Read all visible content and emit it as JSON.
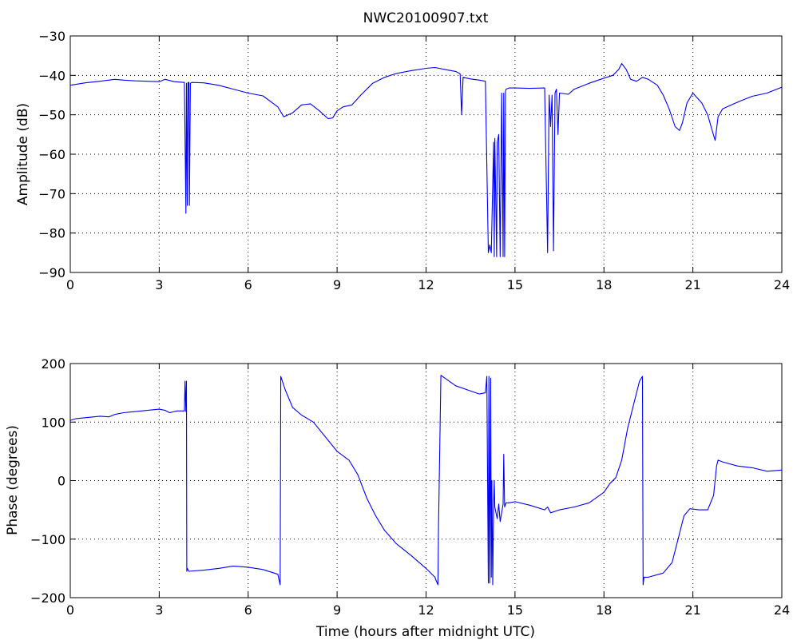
{
  "figure": {
    "title": "NWC20100907.txt"
  },
  "chart_data": [
    {
      "type": "line",
      "title": "NWC20100907.txt",
      "xlabel": "",
      "ylabel": "Amplitude (dB)",
      "xlim": [
        0,
        24
      ],
      "ylim": [
        -90,
        -30
      ],
      "xticks": [
        0,
        3,
        6,
        9,
        12,
        15,
        18,
        21,
        24
      ],
      "yticks": [
        -90,
        -80,
        -70,
        -60,
        -50,
        -40,
        -30
      ],
      "xtick_labels": [
        "0",
        "3",
        "6",
        "9",
        "12",
        "15",
        "18",
        "21",
        "24"
      ],
      "ytick_labels": [
        "−90",
        "−80",
        "−70",
        "−60",
        "−50",
        "−40",
        "−30"
      ],
      "grid": true,
      "color": "#0000ff",
      "series": [
        {
          "x": [
            0,
            0.5,
            1.0,
            1.5,
            1.8,
            2.2,
            2.6,
            3.0,
            3.2,
            3.5,
            3.85,
            3.9,
            3.92,
            3.95,
            3.97,
            4.0,
            4.02,
            4.05,
            4.1,
            4.5,
            5.0,
            5.5,
            6.0,
            6.5,
            7.0,
            7.2,
            7.5,
            7.8,
            8.1,
            8.4,
            8.7,
            8.85,
            9.0,
            9.2,
            9.5,
            9.8,
            10.2,
            10.6,
            11.0,
            11.5,
            12.0,
            12.3,
            12.7,
            13.0,
            13.15,
            13.2,
            13.25,
            13.5,
            13.8,
            14.0,
            14.1,
            14.15,
            14.2,
            14.28,
            14.3,
            14.32,
            14.38,
            14.4,
            14.45,
            14.5,
            14.55,
            14.6,
            14.62,
            14.65,
            14.68,
            14.7,
            14.8,
            15.0,
            15.5,
            16.0,
            16.1,
            16.15,
            16.2,
            16.25,
            16.3,
            16.35,
            16.4,
            16.45,
            16.5,
            16.8,
            17.0,
            17.5,
            18.0,
            18.3,
            18.5,
            18.6,
            18.75,
            18.9,
            19.1,
            19.3,
            19.5,
            19.8,
            20.0,
            20.2,
            20.4,
            20.55,
            20.65,
            20.8,
            21.0,
            21.3,
            21.5,
            21.65,
            21.75,
            21.85,
            22.0,
            22.3,
            22.6,
            23.0,
            23.5,
            24.0
          ],
          "values": [
            -42.5,
            -41.9,
            -41.5,
            -41.0,
            -41.2,
            -41.4,
            -41.5,
            -41.6,
            -41.0,
            -41.6,
            -41.8,
            -75,
            -42,
            -73,
            -41.8,
            -41.8,
            -73,
            -42,
            -41.8,
            -41.9,
            -42.5,
            -43.5,
            -44.5,
            -45.2,
            -48,
            -50.5,
            -49.5,
            -47.5,
            -47.2,
            -49,
            -51.0,
            -50.8,
            -49,
            -48,
            -47.5,
            -45,
            -42,
            -40.5,
            -39.5,
            -38.8,
            -38.2,
            -38.0,
            -38.6,
            -39.0,
            -39.6,
            -50,
            -40.5,
            -40.9,
            -41.2,
            -41.5,
            -85,
            -83,
            -85,
            -57,
            -86,
            -56,
            -86,
            -57,
            -55,
            -86,
            -44.5,
            -86,
            -44.5,
            -86,
            -44,
            -43.5,
            -43.2,
            -43.2,
            -43.3,
            -43.2,
            -85,
            -45,
            -53,
            -45,
            -84.5,
            -44.5,
            -43.5,
            -55,
            -44.5,
            -44.8,
            -43.5,
            -42,
            -40.7,
            -40,
            -38.5,
            -37,
            -38.5,
            -41,
            -41.5,
            -40.5,
            -41,
            -42.5,
            -45,
            -48.5,
            -53.0,
            -54.0,
            -52,
            -47,
            -44.5,
            -47,
            -50,
            -54,
            -56.5,
            -50.5,
            -48.5,
            -47.5,
            -46.5,
            -45.3,
            -44.5,
            -43.0
          ]
        }
      ]
    },
    {
      "type": "line",
      "title": "",
      "xlabel": "Time (hours after midnight UTC)",
      "ylabel": "Phase (degrees)",
      "xlim": [
        0,
        24
      ],
      "ylim": [
        -200,
        200
      ],
      "xticks": [
        0,
        3,
        6,
        9,
        12,
        15,
        18,
        21,
        24
      ],
      "yticks": [
        -200,
        -100,
        0,
        100,
        200
      ],
      "xtick_labels": [
        "0",
        "3",
        "6",
        "9",
        "12",
        "15",
        "18",
        "21",
        "24"
      ],
      "ytick_labels": [
        "−200",
        "−100",
        "0",
        "100",
        "200"
      ],
      "grid": true,
      "color": "#0000ff",
      "series": [
        {
          "x": [
            0,
            0.2,
            0.6,
            1.0,
            1.3,
            1.5,
            1.8,
            2.2,
            2.6,
            3.0,
            3.2,
            3.35,
            3.6,
            3.85,
            3.87,
            3.9,
            3.92,
            3.93,
            3.95,
            4.0,
            4.5,
            5.0,
            5.5,
            6.0,
            6.5,
            7.0,
            7.08,
            7.1,
            7.25,
            7.5,
            7.8,
            8.2,
            8.6,
            9.0,
            9.4,
            9.7,
            10.0,
            10.3,
            10.6,
            11.0,
            11.5,
            12.0,
            12.3,
            12.35,
            12.4,
            12.42,
            12.5,
            13.0,
            13.4,
            13.8,
            14.0,
            14.05,
            14.1,
            14.12,
            14.15,
            14.18,
            14.2,
            14.22,
            14.25,
            14.28,
            14.3,
            14.32,
            14.4,
            14.45,
            14.5,
            14.6,
            14.62,
            14.65,
            14.7,
            14.8,
            15.0,
            15.5,
            16.0,
            16.1,
            16.2,
            16.5,
            17.0,
            17.5,
            18.0,
            18.2,
            18.4,
            18.6,
            18.8,
            19.0,
            19.2,
            19.3,
            19.32,
            19.35,
            19.5,
            20.0,
            20.3,
            20.5,
            20.7,
            20.9,
            21.2,
            21.5,
            21.7,
            21.8,
            21.85,
            22.0,
            22.5,
            23.0,
            23.5,
            24.0
          ],
          "values": [
            103,
            106,
            108,
            110,
            109,
            113,
            116,
            118,
            120,
            122,
            120,
            116,
            119,
            119,
            170,
            118,
            170,
            -155,
            -150,
            -155,
            -153,
            -150,
            -146,
            -148,
            -152,
            -160,
            -178,
            178,
            155,
            125,
            112,
            100,
            75,
            50,
            35,
            10,
            -30,
            -60,
            -85,
            -108,
            -128,
            -150,
            -165,
            -172,
            -178,
            -80,
            180,
            162,
            155,
            148,
            150,
            178,
            -175,
            178,
            -175,
            175,
            -165,
            0,
            -178,
            -40,
            0,
            -45,
            -65,
            -40,
            -70,
            -40,
            45,
            -45,
            -38,
            -38,
            -36,
            -42,
            -50,
            -45,
            -55,
            -50,
            -45,
            -38,
            -20,
            -5,
            5,
            35,
            90,
            130,
            170,
            178,
            -178,
            -165,
            -165,
            -158,
            -140,
            -100,
            -60,
            -48,
            -50,
            -50,
            -25,
            25,
            35,
            32,
            25,
            22,
            16,
            18
          ]
        }
      ]
    }
  ]
}
